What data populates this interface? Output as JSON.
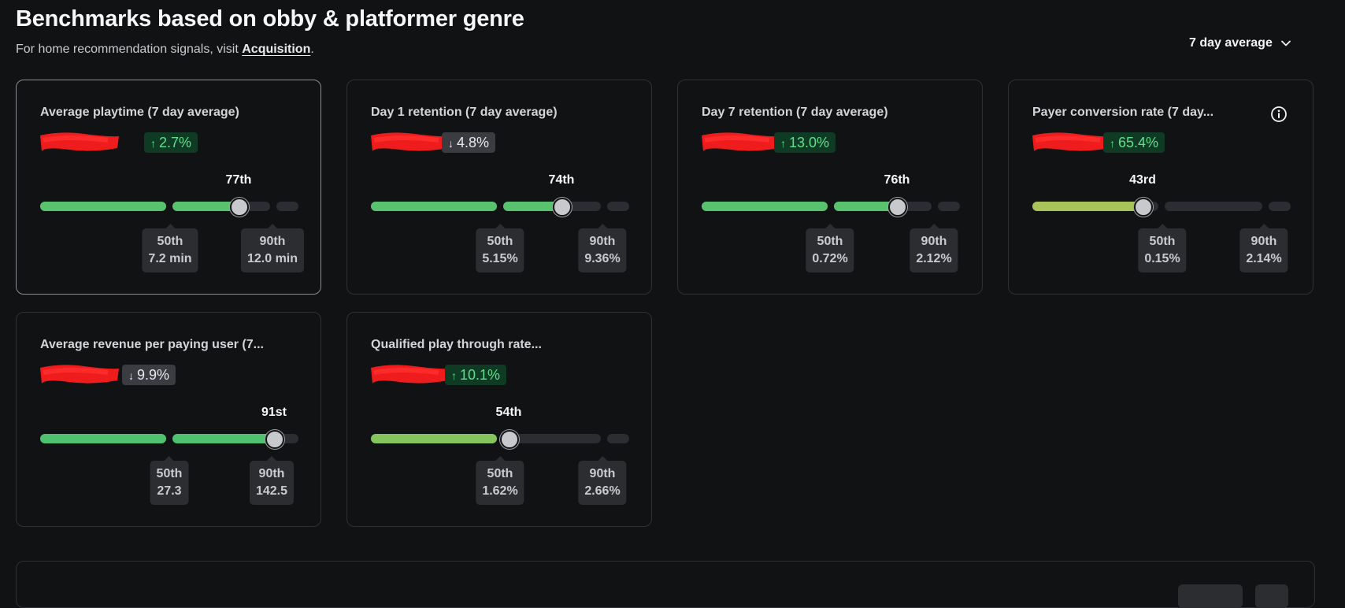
{
  "header": {
    "title": "Benchmarks based on obby & platformer genre",
    "subtitle_prefix": "For home recommendation signals, visit ",
    "subtitle_link": "Acquisition",
    "subtitle_suffix": "."
  },
  "range_dropdown": {
    "label": "7 day average",
    "icon": "chevron-down-icon"
  },
  "colors": {
    "up_badge_bg": "#0f3a24",
    "up_badge_text": "#5fe08b",
    "down_badge_bg": "#3a3c41",
    "green": "#59c26f",
    "lime": "#a8c35a",
    "mid_green": "#86c55e"
  },
  "cards": [
    {
      "title": "Average playtime (7 day average)",
      "delta": {
        "dir": "up",
        "text": "2.7%"
      },
      "percentile": "77th",
      "percentile_value": 77,
      "marks": [
        {
          "label": "50th",
          "value": "7.2 min"
        },
        {
          "label": "90th",
          "value": "12.0 min"
        }
      ],
      "color": "#59c26f"
    },
    {
      "title": "Day 1 retention (7 day average)",
      "delta": {
        "dir": "down",
        "text": "4.8%"
      },
      "percentile": "74th",
      "percentile_value": 74,
      "marks": [
        {
          "label": "50th",
          "value": "5.15%"
        },
        {
          "label": "90th",
          "value": "9.36%"
        }
      ],
      "color": "#59c26f"
    },
    {
      "title": "Day 7 retention (7 day average)",
      "delta": {
        "dir": "up",
        "text": "13.0%"
      },
      "percentile": "76th",
      "percentile_value": 76,
      "marks": [
        {
          "label": "50th",
          "value": "0.72%"
        },
        {
          "label": "90th",
          "value": "2.12%"
        }
      ],
      "color": "#59c26f"
    },
    {
      "title": "Payer conversion rate (7 day...",
      "delta": {
        "dir": "up",
        "text": "65.4%"
      },
      "percentile": "43rd",
      "percentile_value": 43,
      "marks": [
        {
          "label": "50th",
          "value": "0.15%"
        },
        {
          "label": "90th",
          "value": "2.14%"
        }
      ],
      "color": "#a8c35a",
      "info_icon": "info-icon"
    },
    {
      "title": "Average revenue per paying user (7...",
      "delta": {
        "dir": "down",
        "text": "9.9%"
      },
      "percentile": "91st",
      "percentile_value": 91,
      "marks": [
        {
          "label": "50th",
          "value": "27.3"
        },
        {
          "label": "90th",
          "value": "142.5"
        }
      ],
      "color": "#4ec26f"
    },
    {
      "title": "Qualified play through rate...",
      "delta": {
        "dir": "up",
        "text": "10.1%"
      },
      "percentile": "54th",
      "percentile_value": 54,
      "marks": [
        {
          "label": "50th",
          "value": "1.62%"
        },
        {
          "label": "90th",
          "value": "2.66%"
        }
      ],
      "color": "#86c55e"
    }
  ]
}
